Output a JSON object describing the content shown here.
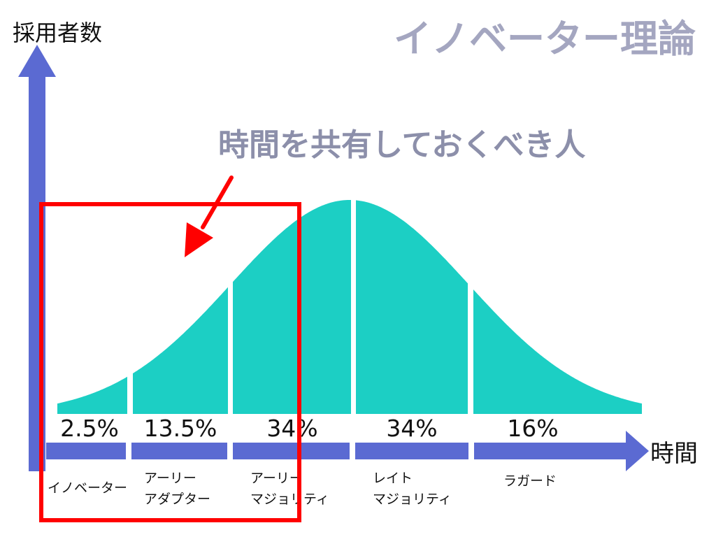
{
  "title": "イノベーター理論",
  "y_axis_label": "採用者数",
  "x_axis_label": "時間",
  "callout": "時間を共有しておくべき人",
  "colors": {
    "curve": "#1ccfc4",
    "axis": "#5b6ad2",
    "title": "#a4a6c0",
    "callout": "#8c8faa",
    "highlight": "#ff0000",
    "text": "#111111"
  },
  "segments": [
    {
      "id": "innovators",
      "percent": "2.5%",
      "label_lines": [
        "イノベーター"
      ]
    },
    {
      "id": "early-adopters",
      "percent": "13.5%",
      "label_lines": [
        "アーリー",
        "アダプター"
      ]
    },
    {
      "id": "early-majority",
      "percent": "34%",
      "label_lines": [
        "アーリー",
        "マジョリティ"
      ]
    },
    {
      "id": "late-majority",
      "percent": "34%",
      "label_lines": [
        "レイト",
        "マジョリティ"
      ]
    },
    {
      "id": "laggards",
      "percent": "16%",
      "label_lines": [
        "ラガード"
      ]
    }
  ],
  "highlight_covers_segments": [
    "innovators",
    "early-adopters",
    "early-majority"
  ]
}
